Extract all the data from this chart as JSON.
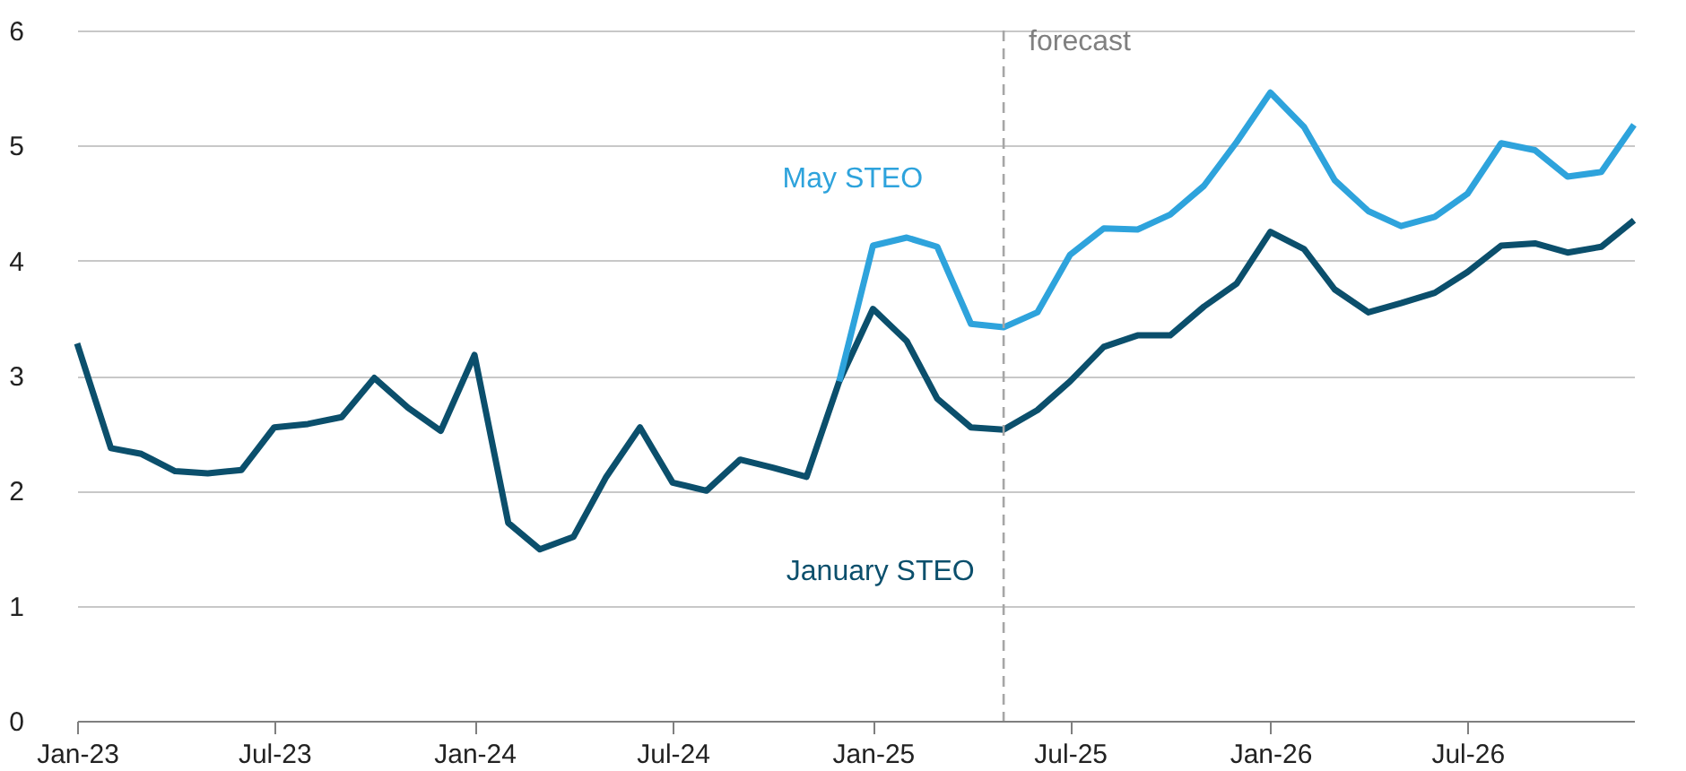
{
  "chart_data": {
    "type": "line",
    "x": [
      "2023-01",
      "2023-02",
      "2023-03",
      "2023-04",
      "2023-05",
      "2023-06",
      "2023-07",
      "2023-08",
      "2023-09",
      "2023-10",
      "2023-11",
      "2023-12",
      "2024-01",
      "2024-02",
      "2024-03",
      "2024-04",
      "2024-05",
      "2024-06",
      "2024-07",
      "2024-08",
      "2024-09",
      "2024-10",
      "2024-11",
      "2024-12",
      "2025-01",
      "2025-02",
      "2025-03",
      "2025-04",
      "2025-05",
      "2025-06",
      "2025-07",
      "2025-08",
      "2025-09",
      "2025-10",
      "2025-11",
      "2025-12",
      "2026-01",
      "2026-02",
      "2026-03",
      "2026-04",
      "2026-05",
      "2026-06",
      "2026-07",
      "2026-08",
      "2026-09",
      "2026-10",
      "2026-11",
      "2026-12"
    ],
    "series": [
      {
        "name": "January STEO",
        "color": "#0b4f6c",
        "values": [
          3.28,
          2.37,
          2.32,
          2.17,
          2.15,
          2.18,
          2.55,
          2.58,
          2.64,
          2.98,
          2.72,
          2.52,
          3.18,
          1.72,
          1.49,
          1.6,
          2.12,
          2.55,
          2.07,
          2.0,
          2.27,
          2.2,
          2.12,
          2.95,
          3.58,
          3.3,
          2.8,
          2.55,
          2.53,
          2.7,
          2.95,
          3.25,
          3.35,
          3.35,
          3.6,
          3.8,
          4.25,
          4.1,
          3.75,
          3.55,
          3.63,
          3.72,
          3.9,
          4.13,
          4.15,
          4.07,
          4.12,
          4.35
        ]
      },
      {
        "name": "May STEO",
        "color": "#2ea3dc",
        "values": [
          null,
          null,
          null,
          null,
          null,
          null,
          null,
          null,
          null,
          null,
          null,
          null,
          null,
          null,
          null,
          null,
          null,
          null,
          null,
          null,
          null,
          null,
          null,
          2.95,
          4.13,
          4.2,
          4.12,
          3.45,
          3.42,
          3.55,
          4.05,
          4.28,
          4.27,
          4.4,
          4.65,
          5.03,
          5.46,
          5.16,
          4.7,
          4.43,
          4.3,
          4.38,
          4.58,
          5.02,
          4.96,
          4.73,
          4.77,
          5.18
        ]
      }
    ],
    "xlim": [
      "2023-01",
      "2026-12"
    ],
    "xticks": [
      {
        "value": "2023-01",
        "label": "Jan-23"
      },
      {
        "value": "2023-07",
        "label": "Jul-23"
      },
      {
        "value": "2024-01",
        "label": "Jan-24"
      },
      {
        "value": "2024-07",
        "label": "Jul-24"
      },
      {
        "value": "2025-01",
        "label": "Jan-25"
      },
      {
        "value": "2025-07",
        "label": "Jul-25"
      },
      {
        "value": "2026-01",
        "label": "Jan-26"
      },
      {
        "value": "2026-07",
        "label": "Jul-26"
      }
    ],
    "ylim": [
      0,
      6
    ],
    "yticks": [
      0,
      1,
      2,
      3,
      4,
      5,
      6
    ],
    "grid": "y",
    "legend": false,
    "marker": "none",
    "line_style": "solid",
    "ref_lines": [
      {
        "axis": "x",
        "value": "2025-05",
        "label": "forecast",
        "color": "#a6a6a6",
        "line_style": "dashed"
      }
    ]
  }
}
